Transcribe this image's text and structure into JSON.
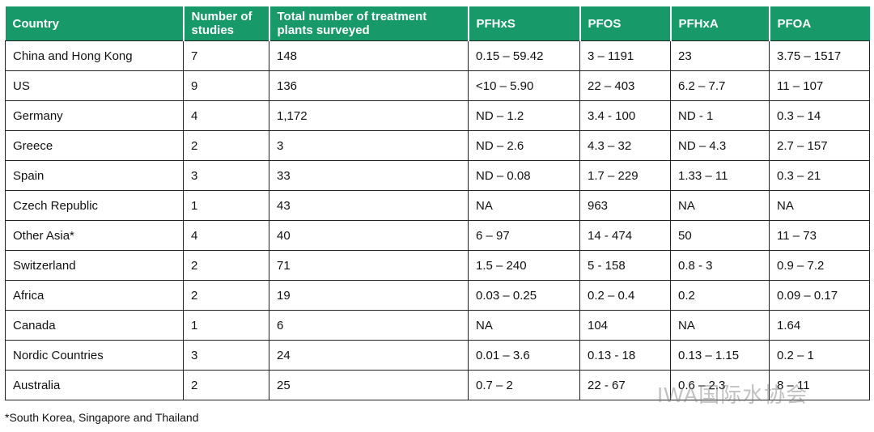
{
  "table": {
    "header": [
      "Country",
      "Number of studies",
      "Total number of treatment plants surveyed",
      "PFHxS",
      "PFOS",
      "PFHxA",
      "PFOA"
    ],
    "rows": [
      [
        "China and Hong Kong",
        "7",
        "148",
        "0.15 – 59.42",
        "3 – 1191",
        "23",
        "3.75 – 1517"
      ],
      [
        "US",
        "9",
        "136",
        "<10 – 5.90",
        "22 – 403",
        "6.2 – 7.7",
        "11 – 107"
      ],
      [
        "Germany",
        "4",
        "1,172",
        "ND – 1.2",
        "3.4 - 100",
        "ND - 1",
        "0.3 – 14"
      ],
      [
        "Greece",
        "2",
        "3",
        "ND – 2.6",
        "4.3 – 32",
        "ND – 4.3",
        "2.7 – 157"
      ],
      [
        "Spain",
        "3",
        "33",
        "ND – 0.08",
        "1.7 – 229",
        "1.33 – 11",
        "0.3 – 21"
      ],
      [
        "Czech Republic",
        "1",
        "43",
        "NA",
        "963",
        "NA",
        "NA"
      ],
      [
        "Other Asia*",
        "4",
        "40",
        "6 – 97",
        "14 - 474",
        "50",
        "11 – 73"
      ],
      [
        "Switzerland",
        "2",
        "71",
        "1.5 – 240",
        "5 - 158",
        "0.8 - 3",
        "0.9 – 7.2"
      ],
      [
        "Africa",
        "2",
        "19",
        "0.03 – 0.25",
        "0.2 – 0.4",
        "0.2",
        "0.09 – 0.17"
      ],
      [
        "Canada",
        "1",
        "6",
        "NA",
        "104",
        "NA",
        "1.64"
      ],
      [
        "Nordic Countries",
        "3",
        "24",
        "0.01 – 3.6",
        "0.13 - 18",
        "0.13 – 1.15",
        "0.2 – 1"
      ],
      [
        "Australia",
        "2",
        "25",
        "0.7 – 2",
        "22 - 67",
        "0.6 – 2.3",
        "8 – 11"
      ]
    ]
  },
  "footnote": "*South Korea, Singapore and Thailand",
  "watermark": "IWA国际水协会"
}
